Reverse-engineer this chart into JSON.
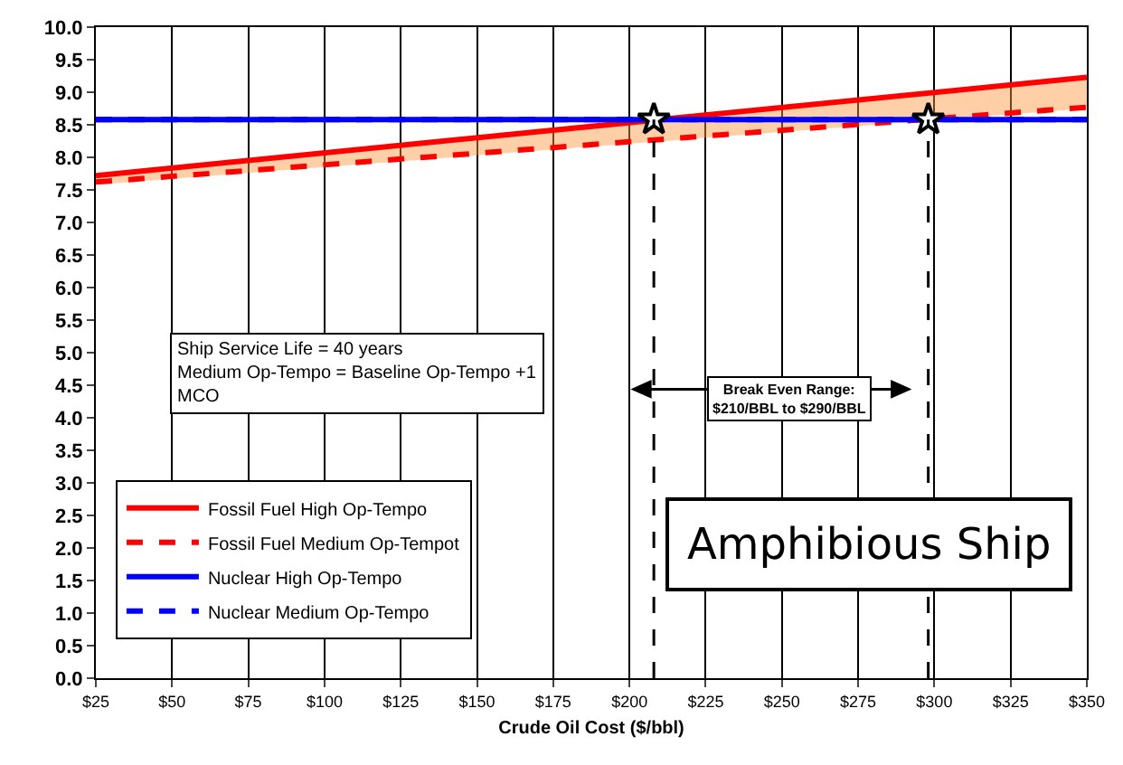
{
  "chart_data": {
    "type": "line",
    "xlabel": "Crude Oil Cost ($/bbl)",
    "xlim": [
      25,
      350
    ],
    "xticks": [
      {
        "value": 25,
        "label": "$25"
      },
      {
        "value": 50,
        "label": "$50"
      },
      {
        "value": 75,
        "label": "$75"
      },
      {
        "value": 100,
        "label": "$100"
      },
      {
        "value": 125,
        "label": "$125"
      },
      {
        "value": 150,
        "label": "$150"
      },
      {
        "value": 175,
        "label": "$175"
      },
      {
        "value": 200,
        "label": "$200"
      },
      {
        "value": 225,
        "label": "$225"
      },
      {
        "value": 250,
        "label": "$250"
      },
      {
        "value": 275,
        "label": "$275"
      },
      {
        "value": 300,
        "label": "$300"
      },
      {
        "value": 325,
        "label": "$325"
      },
      {
        "value": 350,
        "label": "$350"
      }
    ],
    "ylim": [
      0,
      10
    ],
    "yticks": [
      {
        "value": 0,
        "label": "0.0"
      },
      {
        "value": 0.5,
        "label": "0.5"
      },
      {
        "value": 1,
        "label": "1.0"
      },
      {
        "value": 1.5,
        "label": "1.5"
      },
      {
        "value": 2,
        "label": "2.0"
      },
      {
        "value": 2.5,
        "label": "2.5"
      },
      {
        "value": 3,
        "label": "3.0"
      },
      {
        "value": 3.5,
        "label": "3.5"
      },
      {
        "value": 4,
        "label": "4.0"
      },
      {
        "value": 4.5,
        "label": "4.5"
      },
      {
        "value": 5,
        "label": "5.0"
      },
      {
        "value": 5.5,
        "label": "5.5"
      },
      {
        "value": 6,
        "label": "6.0"
      },
      {
        "value": 6.5,
        "label": "6.5"
      },
      {
        "value": 7,
        "label": "7.0"
      },
      {
        "value": 7.5,
        "label": "7.5"
      },
      {
        "value": 8,
        "label": "8.0"
      },
      {
        "value": 8.5,
        "label": "8.5"
      },
      {
        "value": 9,
        "label": "9.0"
      },
      {
        "value": 9.5,
        "label": "9.5"
      },
      {
        "value": 10,
        "label": "10.0"
      }
    ],
    "grid": "x",
    "legend": "bottom left",
    "marker": "none",
    "series": [
      {
        "name": "Fossil Fuel High Op-Tempo",
        "color": "#ff0000",
        "line_style": "solid",
        "x": [
          25,
          350
        ],
        "values": [
          7.72,
          9.23
        ],
        "lower": [
          7.58,
          8.75
        ],
        "upper": [
          7.72,
          9.23
        ]
      },
      {
        "name": "Fossil Fuel Medium Op-Tempot",
        "color": "#ff0000",
        "line_style": "dashed",
        "x": [
          25,
          350
        ],
        "values": [
          7.62,
          8.77
        ]
      },
      {
        "name": "Nuclear High Op-Tempo",
        "color": "#0000ff",
        "line_style": "solid",
        "x": [
          25,
          350
        ],
        "values": [
          8.58,
          8.58
        ]
      },
      {
        "name": "Nuclear Medium Op-Tempo",
        "color": "#0000ff",
        "line_style": "dashed",
        "x": [
          25,
          350
        ],
        "values": [
          8.58,
          8.58
        ]
      },
      {
        "type": "scatter",
        "marker": "star",
        "color": "#ffffff",
        "x": [
          208,
          298
        ],
        "values": [
          8.58,
          8.58
        ]
      }
    ],
    "ref_lines": [
      {
        "axis": "x",
        "value": 208,
        "color": "#000000",
        "line_style": "dashed"
      },
      {
        "axis": "x",
        "value": 298,
        "color": "#000000",
        "line_style": "dashed"
      }
    ],
    "annotations": [
      "Ship Service Life = 40 years\nMedium Op-Tempo = Baseline Op-Tempo +1\nMCO",
      "Break Even Range:\n$210/BBL to $290/BBL",
      "Amphibious Ship"
    ]
  }
}
